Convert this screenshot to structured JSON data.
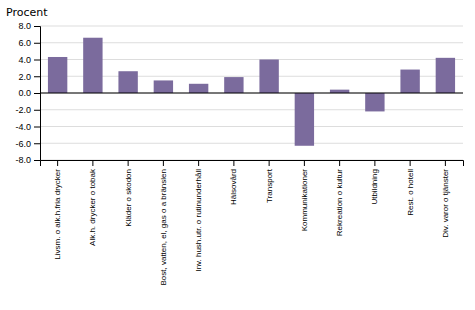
{
  "chart_data": {
    "type": "bar",
    "title": "Procent",
    "categories": [
      "Livsm. o alk.h.fria drycker",
      "Alk.h. drycker o tobak",
      "Kläder o skodon",
      "Bost, vatten, el, gas o a bränslen",
      "Inv. hush.utr. o rutinunderhåll",
      "Hälsovård",
      "Transport",
      "Kommunikationer",
      "Rekreation o kultur",
      "Utbildning",
      "Rest. o hotell",
      "Div. varor o tjänster"
    ],
    "values": [
      4.3,
      6.6,
      2.6,
      1.5,
      1.1,
      1.9,
      4.0,
      -6.3,
      0.4,
      -2.2,
      2.8,
      4.2
    ],
    "color": "#7b6b9d",
    "ylim": [
      -8.0,
      8.0
    ],
    "yticks": [
      {
        "value": -8.0,
        "label": "-8.0"
      },
      {
        "value": -6.0,
        "label": "-6.0"
      },
      {
        "value": -4.0,
        "label": "-4.0"
      },
      {
        "value": -2.0,
        "label": "-2.0"
      },
      {
        "value": 0.0,
        "label": "0.0"
      },
      {
        "value": 2.0,
        "label": "2.0"
      },
      {
        "value": 4.0,
        "label": "4.0"
      },
      {
        "value": 6.0,
        "label": "6.0"
      },
      {
        "value": 8.0,
        "label": "8.0"
      }
    ],
    "grid": true
  }
}
